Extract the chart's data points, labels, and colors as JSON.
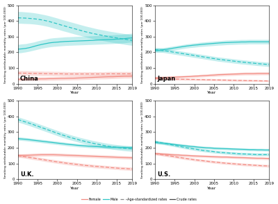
{
  "years": [
    1990,
    1991,
    1992,
    1993,
    1994,
    1995,
    1996,
    1997,
    1998,
    1999,
    2000,
    2001,
    2002,
    2003,
    2004,
    2005,
    2006,
    2007,
    2008,
    2009,
    2010,
    2011,
    2012,
    2013,
    2014,
    2015,
    2016,
    2017,
    2018,
    2019
  ],
  "teal_color": "#2dc5c5",
  "pink_color": "#f28b82",
  "teal_alpha": 0.28,
  "pink_alpha": 0.28,
  "ylim": [
    0,
    500
  ],
  "yticks": [
    0,
    100,
    200,
    300,
    400,
    500
  ],
  "ylabel": "Smoking attributable mortality rates (per 100,000)",
  "xlabel": "Year",
  "xticks": [
    1990,
    1995,
    2000,
    2005,
    2010,
    2015,
    2019
  ],
  "background_color": "#ffffff",
  "china": {
    "male_crude": [
      220,
      222,
      225,
      230,
      237,
      244,
      250,
      255,
      260,
      263,
      265,
      267,
      269,
      270,
      271,
      272,
      273,
      274,
      275,
      276,
      278,
      279,
      280,
      281,
      282,
      284,
      285,
      287,
      290,
      292
    ],
    "male_crude_lo": [
      195,
      198,
      202,
      207,
      213,
      219,
      225,
      230,
      234,
      237,
      239,
      241,
      243,
      244,
      245,
      246,
      247,
      248,
      249,
      250,
      251,
      252,
      253,
      254,
      255,
      257,
      258,
      260,
      263,
      265
    ],
    "male_crude_hi": [
      250,
      253,
      255,
      260,
      265,
      272,
      278,
      283,
      289,
      292,
      294,
      296,
      298,
      299,
      300,
      301,
      302,
      303,
      304,
      305,
      307,
      308,
      309,
      310,
      311,
      313,
      314,
      316,
      319,
      321
    ],
    "male_agestd": [
      420,
      419,
      418,
      416,
      414,
      411,
      407,
      402,
      396,
      389,
      382,
      374,
      367,
      360,
      353,
      346,
      339,
      332,
      326,
      320,
      315,
      310,
      305,
      300,
      296,
      292,
      288,
      284,
      280,
      276
    ],
    "male_agestd_lo": [
      385,
      384,
      383,
      382,
      380,
      377,
      373,
      368,
      362,
      355,
      348,
      340,
      333,
      326,
      319,
      312,
      306,
      299,
      293,
      287,
      282,
      277,
      272,
      267,
      263,
      259,
      255,
      251,
      247,
      244
    ],
    "male_agestd_hi": [
      460,
      459,
      457,
      455,
      452,
      448,
      443,
      438,
      432,
      425,
      418,
      410,
      403,
      396,
      389,
      382,
      375,
      368,
      362,
      356,
      350,
      345,
      340,
      335,
      331,
      327,
      323,
      319,
      315,
      311
    ],
    "female_crude": [
      28,
      28,
      29,
      29,
      30,
      30,
      31,
      31,
      32,
      32,
      33,
      34,
      34,
      35,
      35,
      36,
      37,
      38,
      39,
      40,
      41,
      42,
      43,
      44,
      44,
      45,
      46,
      47,
      47,
      48
    ],
    "female_crude_lo": [
      18,
      18,
      19,
      19,
      19,
      20,
      20,
      20,
      21,
      21,
      22,
      22,
      23,
      23,
      24,
      24,
      25,
      26,
      27,
      28,
      29,
      30,
      30,
      31,
      32,
      33,
      34,
      35,
      35,
      36
    ],
    "female_crude_hi": [
      40,
      40,
      41,
      42,
      43,
      43,
      44,
      44,
      45,
      45,
      46,
      47,
      47,
      48,
      48,
      49,
      50,
      51,
      52,
      53,
      54,
      55,
      56,
      57,
      58,
      59,
      60,
      60,
      61,
      62
    ],
    "female_agestd": [
      68,
      67,
      67,
      66,
      66,
      65,
      65,
      64,
      64,
      63,
      63,
      63,
      62,
      62,
      62,
      62,
      62,
      62,
      62,
      62,
      62,
      62,
      62,
      63,
      63,
      63,
      63,
      63,
      63,
      63
    ],
    "female_agestd_lo": [
      54,
      54,
      53,
      53,
      52,
      52,
      51,
      51,
      51,
      50,
      50,
      50,
      49,
      49,
      49,
      49,
      49,
      49,
      49,
      49,
      49,
      49,
      49,
      50,
      50,
      50,
      50,
      50,
      50,
      50
    ],
    "female_agestd_hi": [
      84,
      83,
      83,
      82,
      81,
      80,
      80,
      79,
      79,
      78,
      78,
      77,
      77,
      76,
      76,
      76,
      76,
      76,
      76,
      76,
      76,
      76,
      76,
      77,
      77,
      77,
      77,
      77,
      77,
      77
    ]
  },
  "japan": {
    "male_crude": [
      210,
      213,
      216,
      220,
      224,
      228,
      232,
      236,
      240,
      243,
      246,
      248,
      251,
      253,
      255,
      257,
      259,
      261,
      262,
      263,
      264,
      265,
      266,
      266,
      267,
      267,
      267,
      267,
      267,
      267
    ],
    "male_crude_lo": [
      198,
      201,
      204,
      208,
      212,
      216,
      219,
      223,
      227,
      230,
      232,
      235,
      237,
      239,
      241,
      243,
      245,
      246,
      248,
      249,
      250,
      251,
      252,
      252,
      253,
      253,
      253,
      253,
      253,
      253
    ],
    "male_crude_hi": [
      223,
      226,
      229,
      233,
      237,
      241,
      245,
      249,
      253,
      256,
      259,
      262,
      265,
      267,
      269,
      271,
      273,
      275,
      277,
      278,
      279,
      280,
      281,
      281,
      282,
      282,
      282,
      282,
      282,
      282
    ],
    "male_agestd": [
      218,
      215,
      212,
      208,
      204,
      200,
      196,
      192,
      188,
      184,
      180,
      176,
      172,
      168,
      164,
      160,
      156,
      153,
      150,
      147,
      144,
      141,
      138,
      136,
      133,
      131,
      128,
      126,
      124,
      122
    ],
    "male_agestd_lo": [
      205,
      202,
      199,
      195,
      191,
      187,
      183,
      179,
      175,
      171,
      167,
      163,
      159,
      155,
      151,
      147,
      143,
      140,
      137,
      134,
      131,
      128,
      125,
      123,
      120,
      118,
      115,
      113,
      111,
      109
    ],
    "male_agestd_hi": [
      232,
      229,
      226,
      222,
      218,
      214,
      210,
      206,
      202,
      198,
      194,
      190,
      186,
      182,
      178,
      174,
      170,
      167,
      164,
      161,
      158,
      155,
      152,
      150,
      147,
      145,
      142,
      140,
      138,
      136
    ],
    "female_crude": [
      38,
      39,
      40,
      40,
      41,
      42,
      43,
      44,
      45,
      46,
      48,
      49,
      51,
      52,
      54,
      55,
      57,
      58,
      59,
      60,
      61,
      62,
      63,
      64,
      64,
      64,
      65,
      65,
      65,
      65
    ],
    "female_crude_lo": [
      31,
      32,
      32,
      33,
      34,
      35,
      36,
      37,
      38,
      39,
      40,
      41,
      42,
      44,
      45,
      46,
      48,
      49,
      50,
      51,
      52,
      53,
      54,
      55,
      55,
      55,
      55,
      56,
      56,
      56
    ],
    "female_crude_hi": [
      46,
      47,
      48,
      49,
      50,
      51,
      52,
      53,
      54,
      55,
      57,
      58,
      60,
      61,
      63,
      65,
      67,
      68,
      69,
      70,
      71,
      72,
      73,
      74,
      74,
      74,
      75,
      75,
      75,
      75
    ],
    "female_agestd": [
      32,
      31,
      31,
      30,
      30,
      29,
      29,
      28,
      28,
      27,
      27,
      26,
      26,
      25,
      25,
      24,
      24,
      23,
      23,
      22,
      22,
      21,
      21,
      20,
      20,
      19,
      19,
      18,
      18,
      17
    ],
    "female_agestd_lo": [
      25,
      25,
      24,
      24,
      23,
      23,
      22,
      22,
      21,
      21,
      21,
      20,
      20,
      19,
      19,
      18,
      18,
      17,
      17,
      16,
      16,
      15,
      15,
      15,
      14,
      14,
      14,
      13,
      13,
      12
    ],
    "female_agestd_hi": [
      40,
      39,
      39,
      38,
      38,
      37,
      37,
      36,
      36,
      35,
      35,
      34,
      34,
      33,
      33,
      32,
      31,
      31,
      30,
      30,
      29,
      28,
      28,
      27,
      27,
      26,
      26,
      25,
      25,
      24
    ]
  },
  "uk": {
    "male_crude": [
      258,
      256,
      254,
      251,
      248,
      245,
      242,
      239,
      236,
      233,
      230,
      227,
      224,
      221,
      219,
      216,
      214,
      212,
      210,
      208,
      207,
      206,
      205,
      204,
      203,
      203,
      202,
      202,
      201,
      201
    ],
    "male_crude_lo": [
      248,
      246,
      244,
      241,
      238,
      235,
      232,
      229,
      226,
      223,
      220,
      217,
      214,
      211,
      209,
      206,
      204,
      202,
      200,
      198,
      197,
      196,
      195,
      194,
      193,
      193,
      192,
      192,
      191,
      191
    ],
    "male_crude_hi": [
      269,
      267,
      265,
      262,
      259,
      256,
      253,
      250,
      247,
      244,
      241,
      238,
      235,
      232,
      230,
      227,
      225,
      223,
      221,
      219,
      218,
      217,
      216,
      215,
      214,
      214,
      213,
      213,
      212,
      212
    ],
    "male_agestd": [
      380,
      372,
      364,
      356,
      347,
      338,
      329,
      320,
      311,
      302,
      293,
      284,
      276,
      268,
      261,
      254,
      247,
      241,
      235,
      229,
      224,
      219,
      214,
      210,
      206,
      203,
      200,
      197,
      195,
      193
    ],
    "male_agestd_lo": [
      364,
      356,
      348,
      340,
      331,
      322,
      313,
      304,
      295,
      286,
      277,
      268,
      260,
      252,
      245,
      238,
      231,
      225,
      219,
      213,
      208,
      203,
      198,
      194,
      190,
      187,
      184,
      181,
      179,
      177
    ],
    "male_agestd_hi": [
      397,
      389,
      381,
      373,
      364,
      355,
      346,
      337,
      328,
      319,
      310,
      301,
      293,
      285,
      278,
      271,
      264,
      258,
      252,
      246,
      241,
      236,
      231,
      227,
      223,
      220,
      217,
      214,
      212,
      210
    ],
    "female_crude": [
      150,
      151,
      152,
      153,
      154,
      155,
      156,
      156,
      156,
      156,
      155,
      154,
      153,
      152,
      151,
      150,
      149,
      148,
      147,
      146,
      145,
      144,
      143,
      142,
      141,
      140,
      139,
      138,
      137,
      136
    ],
    "female_crude_lo": [
      140,
      141,
      142,
      143,
      144,
      145,
      146,
      146,
      146,
      146,
      145,
      144,
      143,
      142,
      141,
      140,
      139,
      138,
      137,
      136,
      135,
      134,
      133,
      132,
      131,
      130,
      129,
      128,
      127,
      126
    ],
    "female_crude_hi": [
      161,
      162,
      163,
      164,
      165,
      166,
      167,
      167,
      167,
      167,
      166,
      165,
      164,
      163,
      162,
      161,
      160,
      159,
      158,
      157,
      156,
      155,
      154,
      153,
      152,
      151,
      150,
      149,
      148,
      147
    ],
    "female_agestd": [
      150,
      146,
      142,
      138,
      134,
      130,
      126,
      122,
      118,
      114,
      110,
      107,
      103,
      100,
      97,
      94,
      91,
      88,
      86,
      83,
      81,
      79,
      77,
      75,
      73,
      71,
      69,
      68,
      66,
      65
    ],
    "female_agestd_lo": [
      140,
      136,
      132,
      128,
      124,
      120,
      116,
      112,
      108,
      104,
      100,
      97,
      93,
      90,
      87,
      84,
      81,
      78,
      76,
      73,
      71,
      69,
      67,
      65,
      63,
      61,
      59,
      58,
      56,
      55
    ],
    "female_agestd_hi": [
      161,
      157,
      153,
      149,
      145,
      141,
      137,
      133,
      129,
      125,
      121,
      118,
      114,
      111,
      108,
      105,
      102,
      99,
      97,
      94,
      92,
      90,
      88,
      86,
      84,
      82,
      80,
      79,
      77,
      76
    ]
  },
  "us": {
    "male_crude": [
      233,
      231,
      229,
      227,
      224,
      221,
      218,
      215,
      212,
      209,
      207,
      204,
      202,
      200,
      199,
      197,
      196,
      195,
      194,
      193,
      192,
      191,
      190,
      189,
      188,
      188,
      187,
      187,
      186,
      186
    ],
    "male_crude_lo": [
      225,
      223,
      221,
      219,
      216,
      213,
      210,
      207,
      204,
      201,
      199,
      196,
      194,
      192,
      191,
      189,
      188,
      187,
      186,
      185,
      184,
      183,
      182,
      181,
      180,
      180,
      179,
      179,
      178,
      178
    ],
    "male_crude_hi": [
      242,
      240,
      238,
      236,
      233,
      230,
      227,
      224,
      221,
      218,
      216,
      213,
      211,
      209,
      208,
      206,
      205,
      204,
      203,
      202,
      201,
      200,
      199,
      198,
      197,
      197,
      196,
      196,
      195,
      195
    ],
    "male_agestd": [
      240,
      235,
      230,
      225,
      220,
      215,
      210,
      205,
      200,
      196,
      192,
      188,
      184,
      181,
      178,
      175,
      172,
      170,
      168,
      166,
      164,
      162,
      161,
      160,
      159,
      158,
      157,
      157,
      157,
      157
    ],
    "male_agestd_lo": [
      231,
      226,
      221,
      216,
      211,
      206,
      201,
      196,
      191,
      187,
      183,
      179,
      175,
      172,
      169,
      166,
      163,
      161,
      159,
      157,
      155,
      153,
      152,
      151,
      150,
      149,
      148,
      148,
      148,
      148
    ],
    "male_agestd_hi": [
      250,
      245,
      240,
      235,
      230,
      225,
      220,
      215,
      210,
      206,
      202,
      198,
      194,
      191,
      188,
      185,
      182,
      180,
      178,
      176,
      174,
      172,
      171,
      170,
      169,
      168,
      167,
      167,
      167,
      167
    ],
    "female_crude": [
      163,
      162,
      160,
      159,
      157,
      155,
      154,
      152,
      151,
      149,
      148,
      147,
      146,
      145,
      144,
      143,
      142,
      141,
      141,
      140,
      139,
      138,
      137,
      136,
      135,
      134,
      133,
      133,
      132,
      131
    ],
    "female_crude_lo": [
      155,
      154,
      152,
      151,
      149,
      147,
      146,
      144,
      143,
      141,
      140,
      139,
      138,
      137,
      136,
      135,
      134,
      133,
      133,
      132,
      131,
      130,
      129,
      128,
      127,
      126,
      125,
      125,
      124,
      123
    ],
    "female_crude_hi": [
      172,
      171,
      169,
      168,
      166,
      164,
      163,
      161,
      160,
      158,
      157,
      156,
      155,
      154,
      153,
      152,
      151,
      150,
      150,
      149,
      148,
      147,
      146,
      145,
      144,
      143,
      142,
      142,
      141,
      140
    ],
    "female_agestd": [
      163,
      159,
      155,
      151,
      147,
      143,
      139,
      135,
      131,
      128,
      124,
      121,
      118,
      115,
      112,
      109,
      107,
      104,
      102,
      100,
      98,
      96,
      94,
      92,
      91,
      89,
      88,
      86,
      85,
      84
    ],
    "female_agestd_lo": [
      155,
      151,
      147,
      143,
      139,
      135,
      131,
      127,
      123,
      120,
      116,
      113,
      110,
      107,
      104,
      101,
      99,
      96,
      94,
      92,
      90,
      88,
      86,
      84,
      83,
      81,
      80,
      78,
      77,
      76
    ],
    "female_agestd_hi": [
      172,
      168,
      164,
      160,
      156,
      152,
      148,
      144,
      140,
      137,
      133,
      130,
      127,
      124,
      121,
      118,
      116,
      113,
      111,
      109,
      107,
      105,
      103,
      101,
      100,
      98,
      97,
      95,
      94,
      93
    ]
  }
}
